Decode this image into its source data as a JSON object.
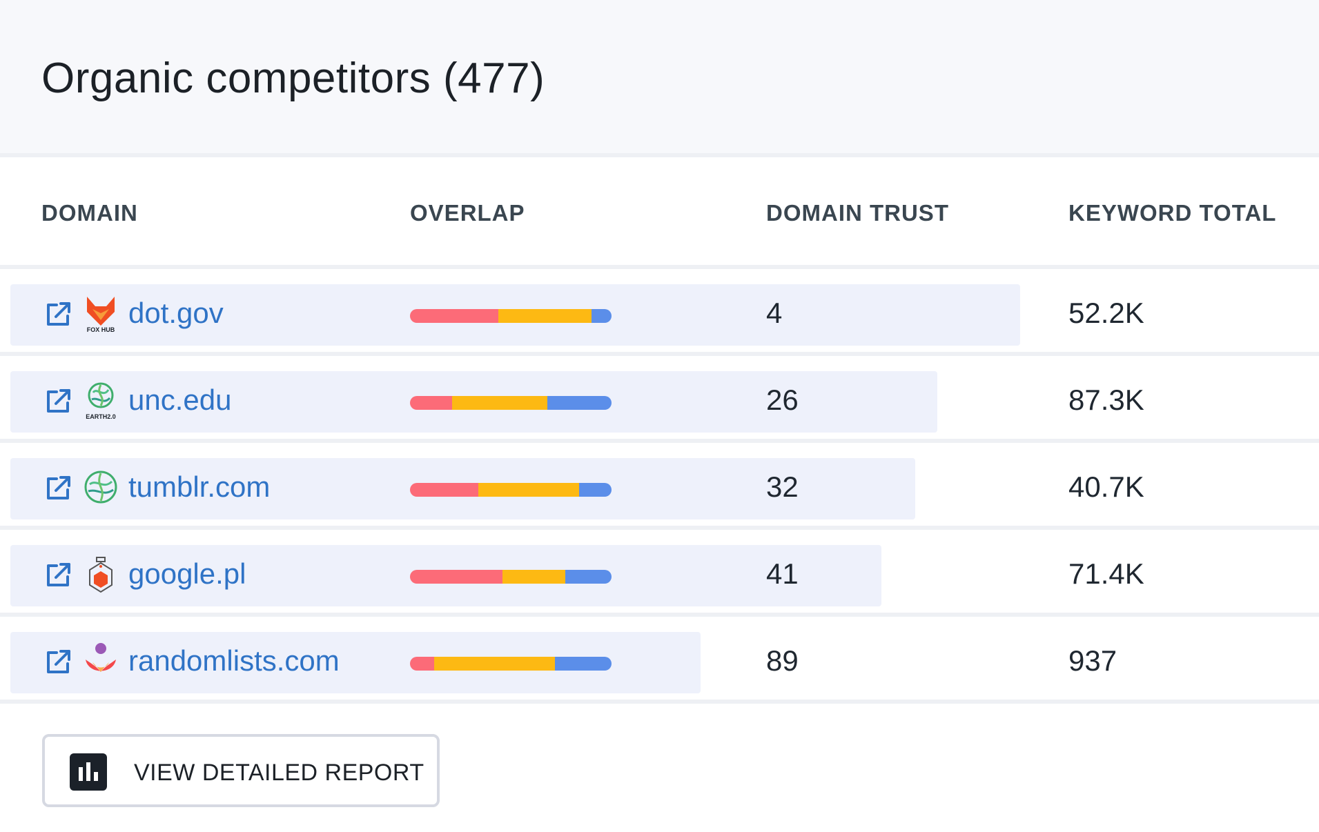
{
  "header": {
    "title": "Organic competitors (477)"
  },
  "table": {
    "columns": {
      "domain": "DOMAIN",
      "overlap": "OVERLAP",
      "domain_trust": "DOMAIN TRUST",
      "keyword_total": "KEYWORD TOTAL"
    },
    "rows": [
      {
        "domain": "dot.gov",
        "logo": "foxhub-logo",
        "logo_text": "FOX HUB",
        "trust": "4",
        "keyword_total": "52.2K",
        "overlap": [
          0.44,
          0.46,
          0.1
        ],
        "trust_fill": 0.04
      },
      {
        "domain": "unc.edu",
        "logo": "earth-logo",
        "logo_text": "EARTH2.0",
        "trust": "26",
        "keyword_total": "87.3K",
        "overlap": [
          0.21,
          0.47,
          0.32
        ],
        "trust_fill": 0.26
      },
      {
        "domain": "tumblr.com",
        "logo": "earth-logo",
        "logo_text": "",
        "trust": "32",
        "keyword_total": "40.7K",
        "overlap": [
          0.34,
          0.5,
          0.16
        ],
        "trust_fill": 0.32
      },
      {
        "domain": "google.pl",
        "logo": "flask-logo",
        "logo_text": "",
        "trust": "41",
        "keyword_total": "71.4K",
        "overlap": [
          0.46,
          0.31,
          0.23
        ],
        "trust_fill": 0.41
      },
      {
        "domain": "randomlists.com",
        "logo": "lotus-logo",
        "logo_text": "",
        "trust": "89",
        "keyword_total": "937",
        "overlap": [
          0.12,
          0.6,
          0.28
        ],
        "trust_fill": 0.89
      }
    ]
  },
  "overlap_colors": [
    "#fc6b78",
    "#fdb913",
    "#5b8ee9"
  ],
  "footer": {
    "report_button": "VIEW DETAILED REPORT",
    "report_icon": "bar-chart-icon"
  }
}
